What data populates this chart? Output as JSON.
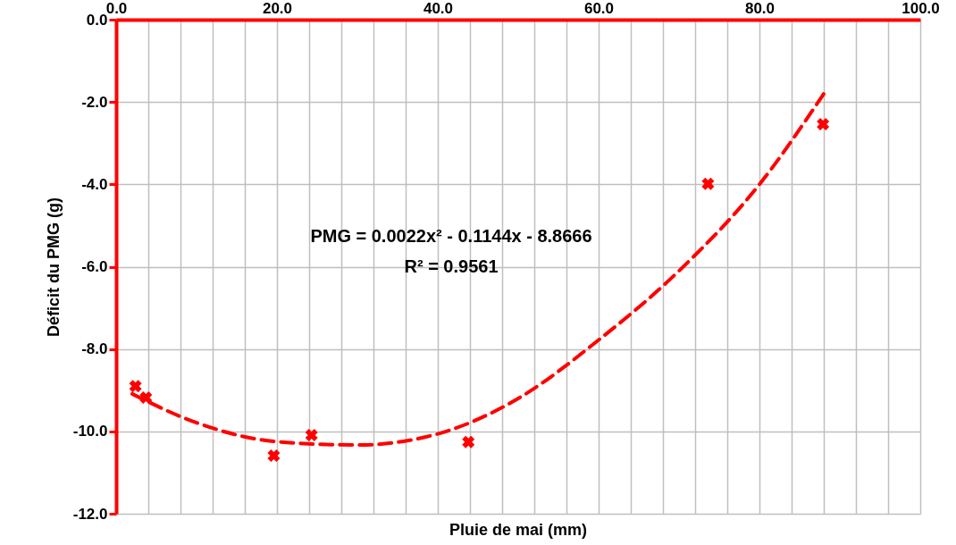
{
  "chart_data": {
    "type": "scatter",
    "xlabel": "Pluie de mai (mm)",
    "ylabel": "Déficit du PMG (g)",
    "xlim": [
      0,
      100
    ],
    "ylim": [
      -12,
      0
    ],
    "xticks": [
      {
        "value": 0,
        "label": "0.0"
      },
      {
        "value": 4,
        "label": null
      },
      {
        "value": 8,
        "label": null
      },
      {
        "value": 12,
        "label": null
      },
      {
        "value": 16,
        "label": null
      },
      {
        "value": 20,
        "label": "20.0"
      },
      {
        "value": 24,
        "label": null
      },
      {
        "value": 28,
        "label": null
      },
      {
        "value": 32,
        "label": null
      },
      {
        "value": 36,
        "label": null
      },
      {
        "value": 40,
        "label": "40.0"
      },
      {
        "value": 44,
        "label": null
      },
      {
        "value": 48,
        "label": null
      },
      {
        "value": 52,
        "label": null
      },
      {
        "value": 56,
        "label": null
      },
      {
        "value": 60,
        "label": "60.0"
      },
      {
        "value": 64,
        "label": null
      },
      {
        "value": 68,
        "label": null
      },
      {
        "value": 72,
        "label": null
      },
      {
        "value": 76,
        "label": null
      },
      {
        "value": 80,
        "label": "80.0"
      },
      {
        "value": 84,
        "label": null
      },
      {
        "value": 88,
        "label": null
      },
      {
        "value": 92,
        "label": null
      },
      {
        "value": 96,
        "label": null
      },
      {
        "value": 100,
        "label": "100.0"
      }
    ],
    "yticks": [
      {
        "value": 0,
        "label": "0.0"
      },
      {
        "value": -2,
        "label": "-2.0"
      },
      {
        "value": -4,
        "label": "-4.0"
      },
      {
        "value": -6,
        "label": "-6.0"
      },
      {
        "value": -8,
        "label": "-8.0"
      },
      {
        "value": -10,
        "label": "-10.0"
      },
      {
        "value": -12,
        "label": "-12.0"
      }
    ],
    "grid": true,
    "marker": "cross",
    "annotations": [
      "PMG = 0.0022x² - 0.1144x - 8.8666",
      "R² = 0.9561"
    ],
    "series": [
      {
        "type": "scatter",
        "color": "#ff0000",
        "x": [
          2.4,
          3.7,
          19.6,
          24.3,
          43.8,
          73.6,
          87.9
        ],
        "values": [
          -8.9,
          -9.18,
          -10.59,
          -10.09,
          -10.26,
          -3.99,
          -2.54
        ]
      },
      {
        "type": "line",
        "color": "#ff0000",
        "line_style": "dashed",
        "marker": "none",
        "x": [
          2,
          10,
          20,
          30,
          40,
          50,
          60,
          70,
          80,
          88
        ],
        "values": [
          -9.09,
          -9.79,
          -10.25,
          -10.33,
          -10.06,
          -9.2,
          -7.78,
          -6.1,
          -4.0,
          -1.8
        ]
      }
    ]
  }
}
